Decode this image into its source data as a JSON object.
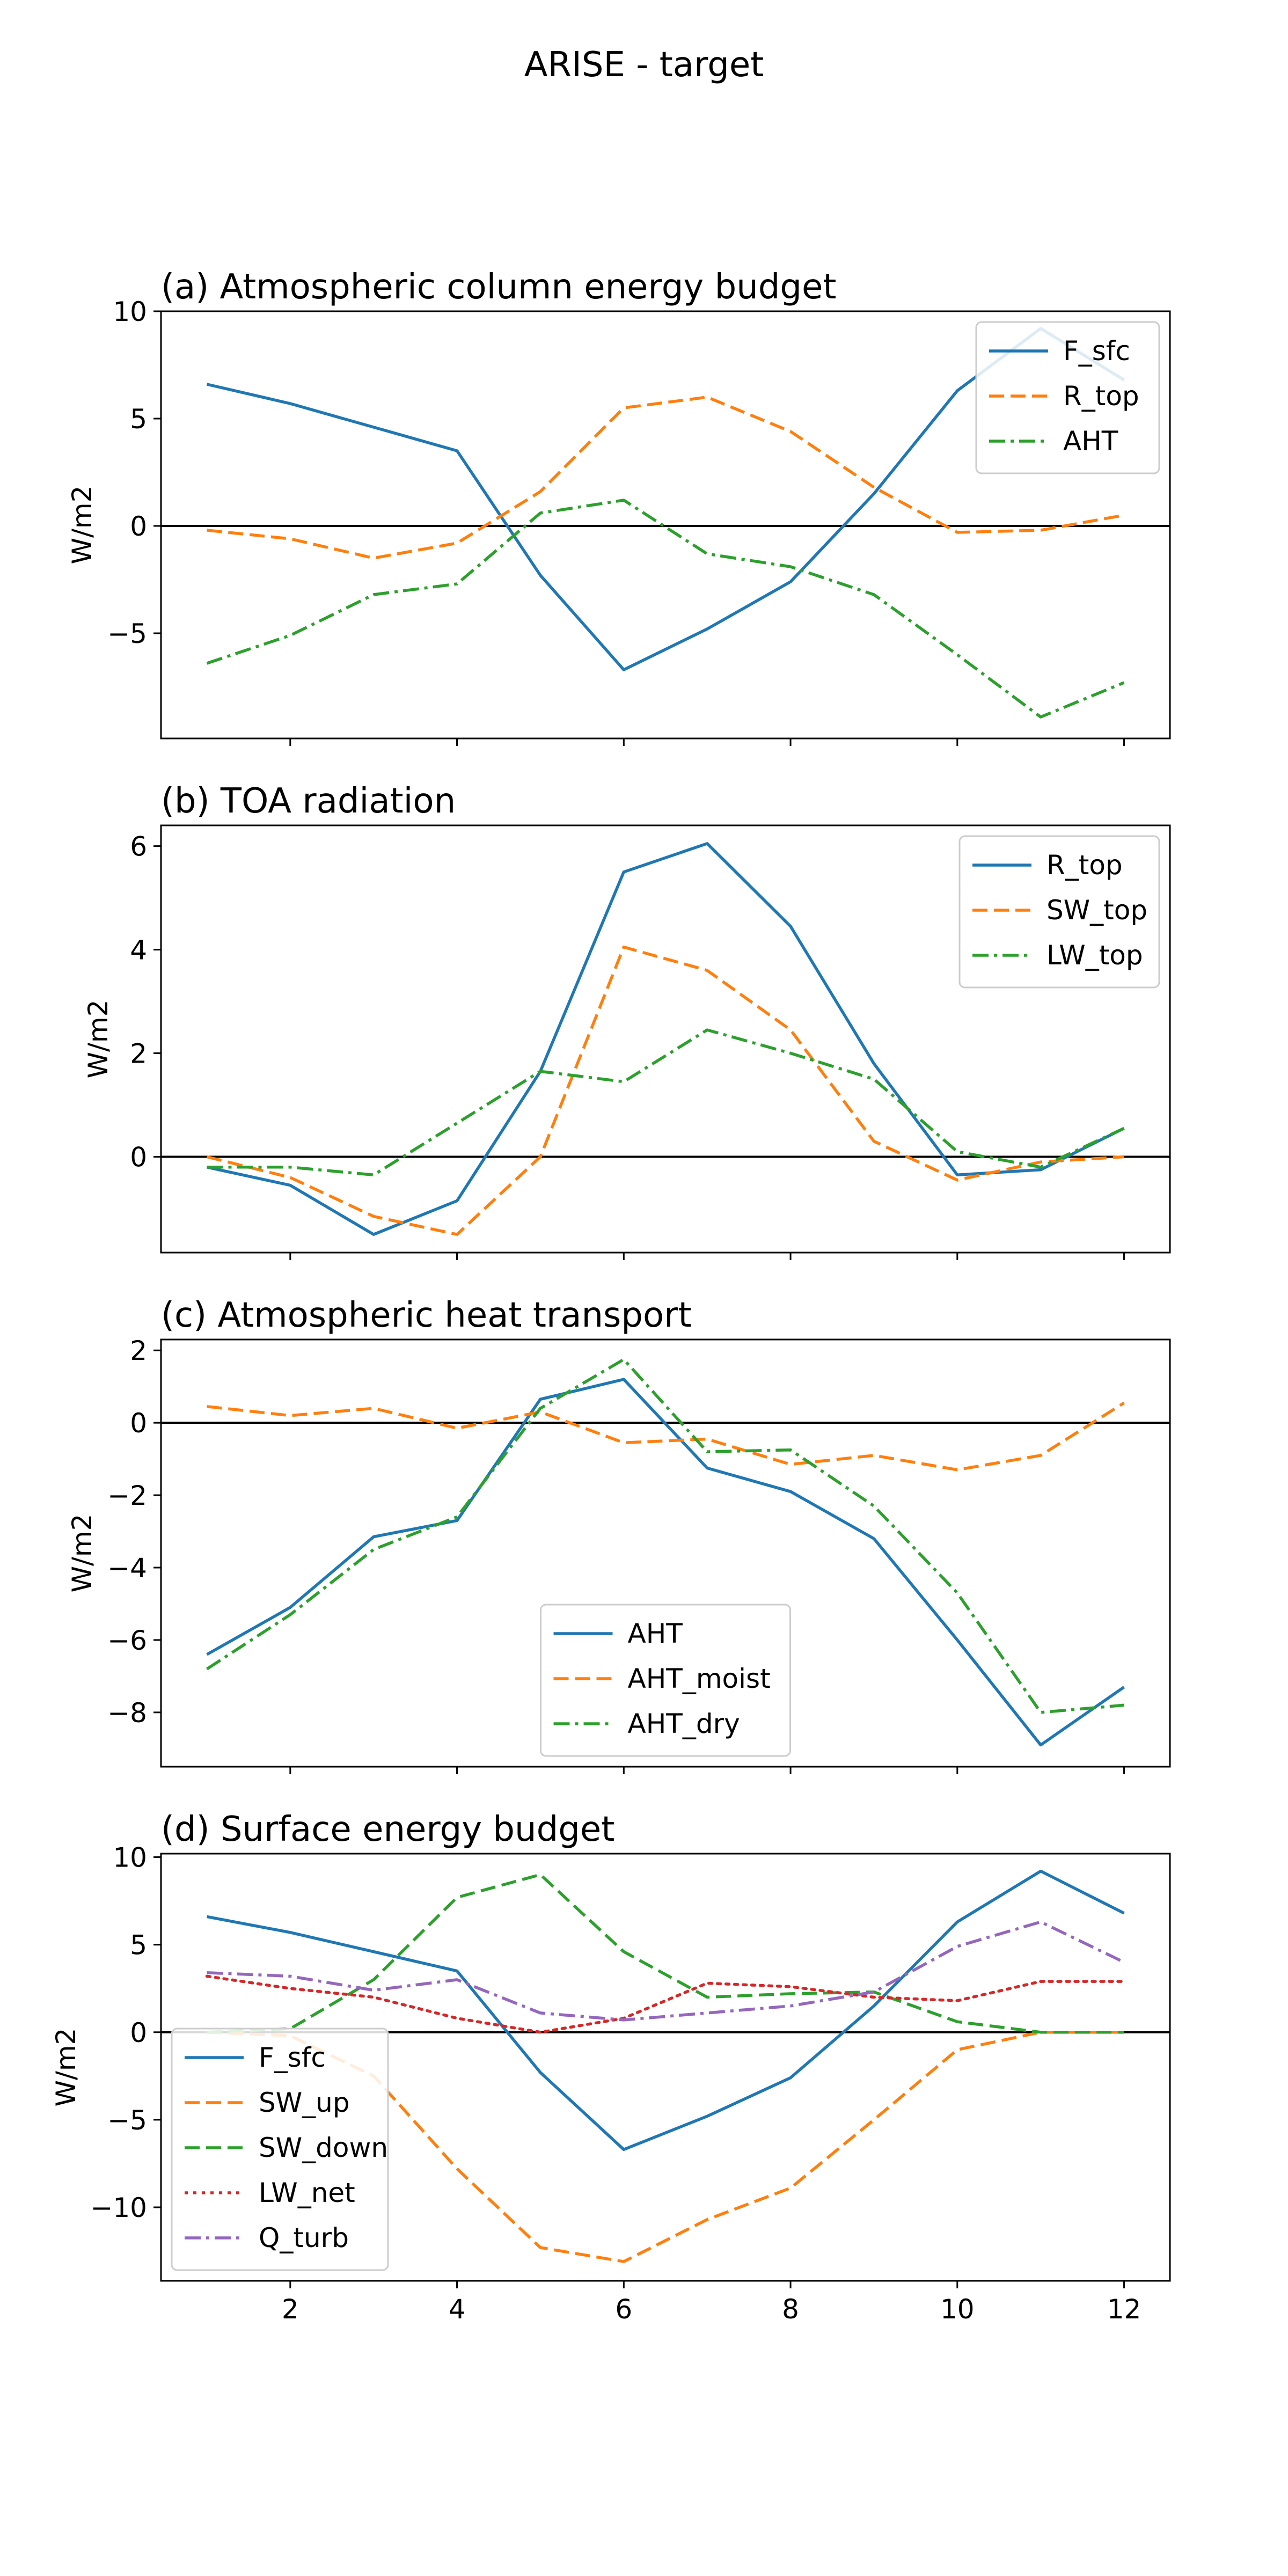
{
  "figure": {
    "title": "ARISE - target"
  },
  "chart_data": [
    {
      "type": "line",
      "title": "(a) Atmospheric column energy budget",
      "ylabel": "W/m2",
      "xlabel": "",
      "x": [
        1,
        2,
        3,
        4,
        5,
        6,
        7,
        8,
        9,
        10,
        11,
        12
      ],
      "xlim": [
        0.45,
        12.55
      ],
      "ylim": [
        -9.9,
        10
      ],
      "yticks": [
        -5,
        0,
        5,
        10
      ],
      "xticks": [
        2,
        4,
        6,
        8,
        10,
        12
      ],
      "show_xtick_labels": false,
      "zero_line": true,
      "legend": "upper right",
      "series": [
        {
          "name": "F_sfc",
          "color": "#1f77b4",
          "style": "solid",
          "values": [
            6.6,
            5.7,
            4.6,
            3.5,
            -2.3,
            -6.7,
            -4.8,
            -2.6,
            1.5,
            6.3,
            9.2,
            6.8
          ]
        },
        {
          "name": "R_top",
          "color": "#ff7f0e",
          "style": "dashed",
          "values": [
            -0.2,
            -0.6,
            -1.5,
            -0.8,
            1.6,
            5.5,
            6.0,
            4.4,
            1.8,
            -0.3,
            -0.2,
            0.5
          ]
        },
        {
          "name": "AHT",
          "color": "#2ca02c",
          "style": "dashdot",
          "values": [
            -6.4,
            -5.1,
            -3.2,
            -2.7,
            0.6,
            1.2,
            -1.3,
            -1.9,
            -3.2,
            -6.0,
            -8.9,
            -7.3
          ]
        }
      ]
    },
    {
      "type": "line",
      "title": "(b) TOA radiation",
      "ylabel": "W/m2",
      "xlabel": "",
      "x": [
        1,
        2,
        3,
        4,
        5,
        6,
        7,
        8,
        9,
        10,
        11,
        12
      ],
      "xlim": [
        0.45,
        12.55
      ],
      "ylim": [
        -1.85,
        6.4
      ],
      "yticks": [
        0,
        2,
        4,
        6
      ],
      "xticks": [
        2,
        4,
        6,
        8,
        10,
        12
      ],
      "show_xtick_labels": false,
      "zero_line": true,
      "legend": "upper right",
      "series": [
        {
          "name": "R_top",
          "color": "#1f77b4",
          "style": "solid",
          "values": [
            -0.2,
            -0.55,
            -1.5,
            -0.85,
            1.65,
            5.5,
            6.05,
            4.45,
            1.8,
            -0.35,
            -0.25,
            0.55
          ]
        },
        {
          "name": "SW_top",
          "color": "#ff7f0e",
          "style": "dashed",
          "values": [
            0.0,
            -0.4,
            -1.15,
            -1.5,
            0.0,
            4.05,
            3.6,
            2.45,
            0.3,
            -0.45,
            -0.1,
            0.0
          ]
        },
        {
          "name": "LW_top",
          "color": "#2ca02c",
          "style": "dashdot",
          "values": [
            -0.2,
            -0.2,
            -0.35,
            0.65,
            1.65,
            1.45,
            2.45,
            2.0,
            1.5,
            0.1,
            -0.2,
            0.55
          ]
        }
      ]
    },
    {
      "type": "line",
      "title": "(c) Atmospheric heat transport",
      "ylabel": "W/m2",
      "xlabel": "",
      "x": [
        1,
        2,
        3,
        4,
        5,
        6,
        7,
        8,
        9,
        10,
        11,
        12
      ],
      "xlim": [
        0.45,
        12.55
      ],
      "ylim": [
        -9.5,
        2.3
      ],
      "yticks": [
        -8,
        -6,
        -4,
        -2,
        0,
        2
      ],
      "xticks": [
        2,
        4,
        6,
        8,
        10,
        12
      ],
      "show_xtick_labels": false,
      "zero_line": true,
      "legend": "lower center",
      "series": [
        {
          "name": "AHT",
          "color": "#1f77b4",
          "style": "solid",
          "values": [
            -6.4,
            -5.1,
            -3.15,
            -2.7,
            0.65,
            1.2,
            -1.25,
            -1.9,
            -3.2,
            -6.0,
            -8.9,
            -7.3
          ]
        },
        {
          "name": "AHT_moist",
          "color": "#ff7f0e",
          "style": "dashed",
          "values": [
            0.45,
            0.2,
            0.4,
            -0.15,
            0.3,
            -0.55,
            -0.45,
            -1.15,
            -0.9,
            -1.3,
            -0.9,
            0.55
          ]
        },
        {
          "name": "AHT_dry",
          "color": "#2ca02c",
          "style": "dashdot",
          "values": [
            -6.8,
            -5.3,
            -3.5,
            -2.6,
            0.4,
            1.75,
            -0.8,
            -0.75,
            -2.3,
            -4.7,
            -8.0,
            -7.8
          ]
        }
      ]
    },
    {
      "type": "line",
      "title": "(d) Surface energy budget",
      "ylabel": "W/m2",
      "xlabel": "",
      "x": [
        1,
        2,
        3,
        4,
        5,
        6,
        7,
        8,
        9,
        10,
        11,
        12
      ],
      "xlim": [
        0.45,
        12.55
      ],
      "ylim": [
        -14.2,
        10.2
      ],
      "yticks": [
        -10,
        -5,
        0,
        5,
        10
      ],
      "xticks": [
        2,
        4,
        6,
        8,
        10,
        12
      ],
      "show_xtick_labels": true,
      "zero_line": true,
      "legend": "lower left",
      "series": [
        {
          "name": "F_sfc",
          "color": "#1f77b4",
          "style": "solid",
          "values": [
            6.6,
            5.7,
            4.6,
            3.5,
            -2.3,
            -6.7,
            -4.8,
            -2.6,
            1.5,
            6.3,
            9.2,
            6.8
          ]
        },
        {
          "name": "SW_up",
          "color": "#ff7f0e",
          "style": "dashed",
          "values": [
            0.0,
            -0.2,
            -2.5,
            -7.8,
            -12.3,
            -13.1,
            -10.7,
            -8.9,
            -5.0,
            -1.0,
            0.0,
            0.0
          ]
        },
        {
          "name": "SW_down",
          "color": "#2ca02c",
          "style": "dashed",
          "values": [
            0.0,
            0.2,
            3.0,
            7.7,
            9.0,
            4.6,
            2.0,
            2.2,
            2.3,
            0.6,
            0.0,
            0.0
          ]
        },
        {
          "name": "LW_net",
          "color": "#d62728",
          "style": "dotted",
          "values": [
            3.2,
            2.5,
            2.0,
            0.8,
            0.0,
            0.8,
            2.8,
            2.6,
            2.0,
            1.8,
            2.9,
            2.9
          ]
        },
        {
          "name": "Q_turb",
          "color": "#9467bd",
          "style": "dashdot",
          "values": [
            3.4,
            3.2,
            2.4,
            3.0,
            1.1,
            0.7,
            1.1,
            1.5,
            2.3,
            4.9,
            6.3,
            4.0
          ]
        }
      ]
    }
  ]
}
